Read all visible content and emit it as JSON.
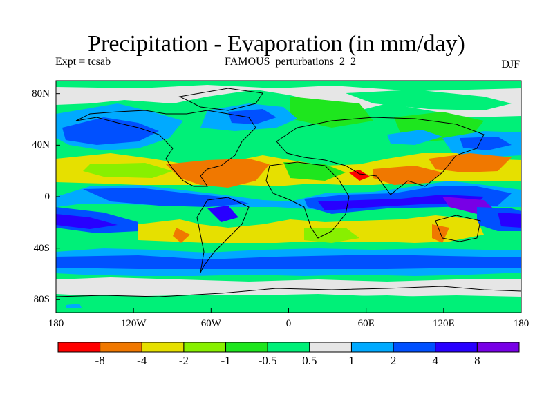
{
  "title": "Precipitation - Evaporation (in mm/day)",
  "subtitle_left": "Expt = tcsab",
  "subtitle_center": "FAMOUS_perturbations_2_2",
  "subtitle_right": "DJF",
  "map": {
    "lon_range": [
      -180,
      180
    ],
    "lat_range": [
      -90,
      90
    ],
    "y_ticks": [
      {
        "label": "80N",
        "lat": 80
      },
      {
        "label": "40N",
        "lat": 40
      },
      {
        "label": "0",
        "lat": 0
      },
      {
        "label": "40S",
        "lat": -40
      },
      {
        "label": "80S",
        "lat": -80
      }
    ],
    "x_ticks": [
      {
        "label": "180",
        "lon": -180
      },
      {
        "label": "120W",
        "lon": -120
      },
      {
        "label": "60W",
        "lon": -60
      },
      {
        "label": "0",
        "lon": 0
      },
      {
        "label": "60E",
        "lon": 60
      },
      {
        "label": "120E",
        "lon": 120
      },
      {
        "label": "180",
        "lon": 180
      }
    ]
  },
  "colorbar": {
    "colors": [
      "#ff0000",
      "#f07800",
      "#e6e000",
      "#88f000",
      "#1ee61e",
      "#00f078",
      "#e6e6e6",
      "#00aaff",
      "#0050ff",
      "#2800ff",
      "#7800e6"
    ],
    "labels": [
      "-8",
      "-4",
      "-2",
      "-1",
      "-0.5",
      "0.5",
      "1",
      "2",
      "4",
      "8"
    ]
  }
}
